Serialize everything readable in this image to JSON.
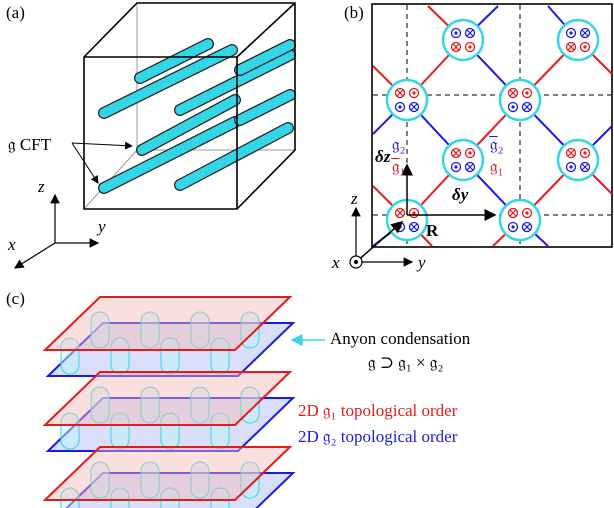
{
  "panel_a": {
    "label": "(a)",
    "cft_label": "𝔤 CFT",
    "axes": {
      "z": "z",
      "y": "y",
      "x": "x"
    }
  },
  "panel_b": {
    "label": "(b)",
    "g2": "𝔤₂",
    "g1bar": "𝔤̅₁",
    "g2bar": "𝔤̅₂",
    "g1": "𝔤₁",
    "delta_z": "δz",
    "delta_y": "δy",
    "R": "R",
    "axes": {
      "z": "z",
      "x": "x",
      "y": "y"
    }
  },
  "panel_c": {
    "label": "(c)",
    "condensation": "Anyon condensation",
    "condensation_formula": "𝔤 ⊃ 𝔤₁ × 𝔤₂",
    "order_1": "2D 𝔤₁ topological order",
    "order_2": "2D 𝔤₂ topological order"
  }
}
